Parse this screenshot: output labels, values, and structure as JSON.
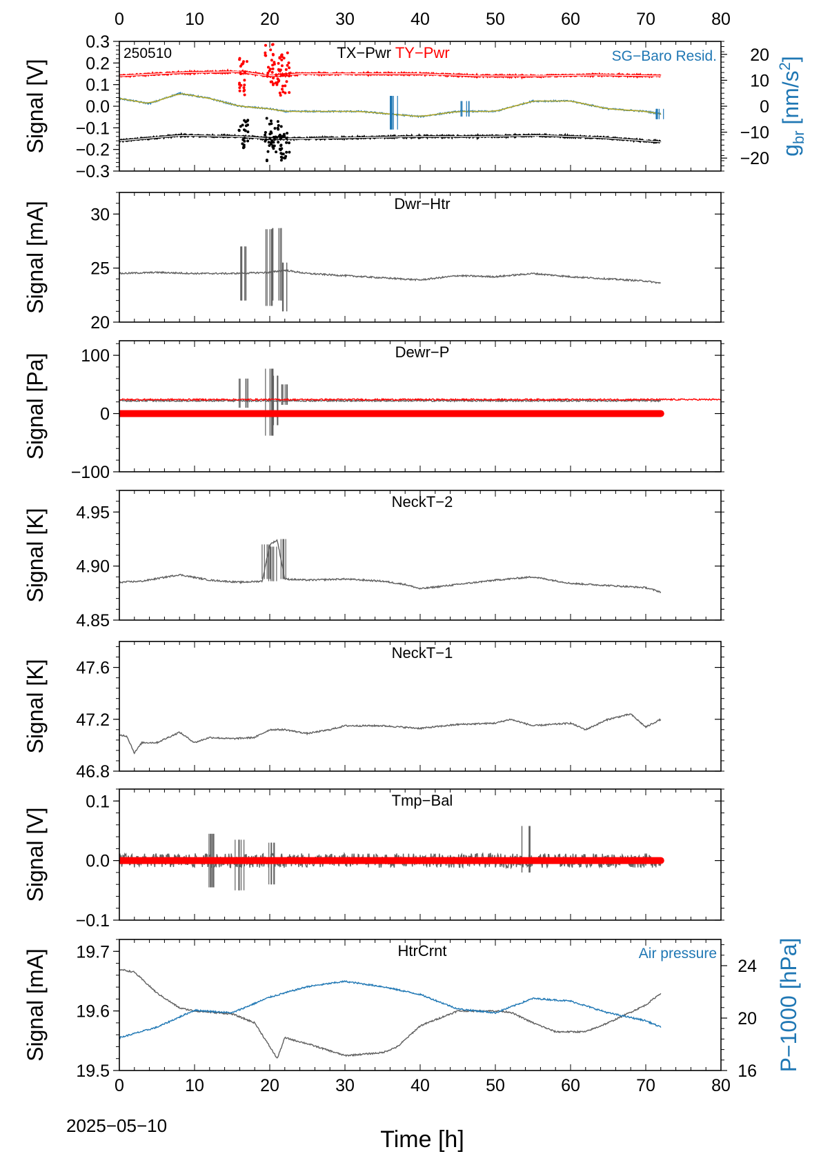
{
  "figure": {
    "date_label": "2025−05−10",
    "x_axis_label": "Time [h]",
    "x_range": [
      0,
      80
    ],
    "x_ticks": [
      0,
      10,
      20,
      30,
      40,
      50,
      60,
      70,
      80
    ]
  },
  "colors": {
    "black": "#000000",
    "red": "#ff0000",
    "blue": "#1f77b4",
    "gray": "#5f5f5f",
    "olive": "#b5a825"
  },
  "chart_data": [
    {
      "type": "line",
      "panel": "pwr",
      "corner_label": "250510",
      "title_parts": [
        "TX−Pwr",
        "TY−Pwr"
      ],
      "right_legend": "SG−Baro Resid.",
      "ylabel": "Signal [V]",
      "ylim": [
        -0.3,
        0.3
      ],
      "yticks": [
        -0.3,
        -0.2,
        -0.1,
        0.0,
        0.1,
        0.2,
        0.3
      ],
      "ytick_labels": [
        "−0.3",
        "−0.2",
        "−0.1",
        "0.0",
        "0.1",
        "0.2",
        "0.3"
      ],
      "y2label": "g_br [nm/s^2]",
      "y2lim": [
        -25,
        25
      ],
      "y2ticks": [
        -20,
        -10,
        0,
        10,
        20
      ],
      "y2tick_labels": [
        "−20",
        "−10",
        "0",
        "10",
        "20"
      ],
      "x_top_ticks": true,
      "series": [
        {
          "name": "TX−Pwr",
          "color": "#000000",
          "x": [
            0,
            8,
            16,
            20,
            24,
            32,
            40,
            48,
            56,
            64,
            72
          ],
          "y": [
            -0.16,
            -0.135,
            -0.14,
            -0.15,
            -0.15,
            -0.145,
            -0.14,
            -0.14,
            -0.135,
            -0.145,
            -0.165
          ],
          "spikes": [
            [
              16.5,
              -0.06,
              -0.2
            ],
            [
              20,
              -0.05,
              -0.26
            ],
            [
              21,
              -0.06,
              -0.25
            ],
            [
              22,
              -0.12,
              -0.25
            ]
          ]
        },
        {
          "name": "TY−Pwr",
          "color": "#ff0000",
          "x": [
            0,
            8,
            16,
            20,
            24,
            32,
            40,
            48,
            56,
            64,
            72
          ],
          "y": [
            0.14,
            0.155,
            0.16,
            0.14,
            0.15,
            0.15,
            0.15,
            0.14,
            0.14,
            0.145,
            0.14
          ],
          "spikes": [
            [
              16.5,
              0.24,
              0.05
            ],
            [
              20,
              0.29,
              0.08
            ],
            [
              21,
              0.27,
              0.1
            ],
            [
              22,
              0.25,
              0.05
            ]
          ]
        },
        {
          "name": "SG−Baro Resid.",
          "axis": "right",
          "color": "#1f77b4",
          "x": [
            0,
            4,
            8,
            12,
            16,
            20,
            22,
            27,
            32,
            36,
            40,
            45,
            50,
            55,
            60,
            65,
            70,
            72
          ],
          "y": [
            3,
            1,
            5,
            3,
            0,
            -1,
            -2,
            -2,
            -2,
            -3,
            -4,
            -2,
            -2,
            2,
            2,
            -1,
            -2,
            -3
          ],
          "spikes": [
            [
              36.5,
              4,
              -9
            ],
            [
              46,
              2,
              -4
            ],
            [
              72,
              -1,
              -5
            ]
          ]
        }
      ]
    },
    {
      "type": "line",
      "panel": "dwr-htr",
      "title": "Dwr−Htr",
      "ylabel": "Signal [mA]",
      "ylim": [
        20,
        32
      ],
      "yticks": [
        20,
        25,
        30
      ],
      "ytick_labels": [
        "20",
        "25",
        "30"
      ],
      "series": [
        {
          "name": "Dwr−Htr",
          "color": "#5f5f5f",
          "x": [
            0,
            5,
            10,
            15,
            20,
            22,
            25,
            30,
            35,
            40,
            45,
            50,
            55,
            60,
            65,
            70,
            72
          ],
          "y": [
            24.5,
            24.6,
            24.5,
            24.5,
            24.6,
            24.8,
            24.5,
            24.3,
            24.1,
            23.9,
            24.3,
            24.2,
            24.5,
            24.2,
            24.0,
            23.8,
            23.6
          ],
          "spikes": [
            [
              16.5,
              27,
              22
            ],
            [
              20,
              28.6,
              21.5
            ],
            [
              21,
              28.7,
              22
            ],
            [
              22,
              25.5,
              21
            ]
          ]
        }
      ]
    },
    {
      "type": "line",
      "panel": "dewr-p",
      "title": "Dewr−P",
      "ylabel": "Signal [Pa]",
      "ylim": [
        -100,
        125
      ],
      "yticks": [
        -100,
        0,
        100
      ],
      "ytick_labels": [
        "−100",
        "0",
        "100"
      ],
      "series": [
        {
          "name": "Dewr−P",
          "color": "#5f5f5f",
          "x": [
            0,
            72
          ],
          "y": [
            22,
            22
          ],
          "spikes": [
            [
              16.5,
              60,
              10
            ],
            [
              20,
              77,
              -38
            ],
            [
              21,
              65,
              -20
            ],
            [
              22,
              50,
              15
            ]
          ]
        },
        {
          "name": "Dewr−P reference",
          "color": "#ff0000",
          "x": [
            0,
            80
          ],
          "y": [
            24,
            24
          ]
        },
        {
          "name": "Dewr−P zero",
          "color": "#ff0000",
          "thick": true,
          "x": [
            0,
            72
          ],
          "y": [
            0,
            0
          ]
        }
      ]
    },
    {
      "type": "line",
      "panel": "neckt-2",
      "title": "NeckT−2",
      "ylabel": "Signal [K]",
      "ylim": [
        4.85,
        4.97
      ],
      "yticks": [
        4.85,
        4.9,
        4.95
      ],
      "ytick_labels": [
        "4.85",
        "4.90",
        "4.95"
      ],
      "series": [
        {
          "name": "NeckT−2",
          "color": "#5f5f5f",
          "x": [
            0,
            3,
            8,
            12,
            16,
            19,
            20,
            21,
            22,
            25,
            30,
            35,
            38,
            40,
            45,
            50,
            55,
            60,
            65,
            70,
            72
          ],
          "y": [
            4.885,
            4.886,
            4.892,
            4.887,
            4.885,
            4.886,
            4.92,
            4.924,
            4.888,
            4.887,
            4.888,
            4.886,
            4.883,
            4.879,
            4.883,
            4.887,
            4.89,
            4.884,
            4.882,
            4.88,
            4.876
          ],
          "spikes": [
            [
              19.5,
              4.92,
              4.888
            ],
            [
              20.5,
              4.918,
              4.886
            ],
            [
              21.5,
              4.925,
              4.888
            ]
          ]
        }
      ]
    },
    {
      "type": "line",
      "panel": "neckt-1",
      "title": "NeckT−1",
      "ylabel": "Signal [K]",
      "ylim": [
        46.8,
        47.8
      ],
      "yticks": [
        46.8,
        47.2,
        47.6
      ],
      "ytick_labels": [
        "46.8",
        "47.2",
        "47.6"
      ],
      "series": [
        {
          "name": "NeckT−1",
          "color": "#5f5f5f",
          "x": [
            0,
            1,
            2,
            3,
            5,
            8,
            10,
            12,
            15,
            18,
            20,
            22,
            25,
            28,
            30,
            35,
            40,
            45,
            50,
            52,
            55,
            60,
            62,
            65,
            68,
            70,
            72
          ],
          "y": [
            47.08,
            47.07,
            46.94,
            47.02,
            47.02,
            47.1,
            47.02,
            47.06,
            47.05,
            47.06,
            47.12,
            47.12,
            47.09,
            47.12,
            47.15,
            47.15,
            47.13,
            47.16,
            47.17,
            47.2,
            47.15,
            47.17,
            47.12,
            47.2,
            47.24,
            47.14,
            47.2
          ]
        }
      ]
    },
    {
      "type": "line",
      "panel": "tmp-bal",
      "title": "Tmp−Bal",
      "ylabel": "Signal [V]",
      "ylim": [
        -0.1,
        0.12
      ],
      "yticks": [
        -0.1,
        0.0,
        0.1
      ],
      "ytick_labels": [
        "−0.1",
        "0.0",
        "0.1"
      ],
      "series": [
        {
          "name": "Tmp−Bal",
          "color": "#5f5f5f",
          "noise": 0.012,
          "x": [
            0,
            72
          ],
          "y": [
            0,
            0
          ],
          "spikes": [
            [
              12.5,
              0.045,
              -0.045
            ],
            [
              16,
              0.035,
              -0.05
            ],
            [
              20,
              0.03,
              -0.04
            ],
            [
              54,
              0.058,
              -0.02
            ]
          ]
        },
        {
          "name": "Tmp−Bal zero",
          "color": "#ff0000",
          "thick": true,
          "x": [
            0,
            72
          ],
          "y": [
            0,
            0
          ]
        }
      ]
    },
    {
      "type": "line",
      "panel": "htrcrnt",
      "title": "HtrCrnt",
      "right_legend": "Air pressure",
      "ylabel": "Signal [mA]",
      "ylim": [
        19.5,
        19.72
      ],
      "yticks": [
        19.5,
        19.6,
        19.7
      ],
      "ytick_labels": [
        "19.5",
        "19.6",
        "19.7"
      ],
      "y2label": "P−1000 [hPa]",
      "y2lim": [
        16,
        26
      ],
      "y2ticks": [
        16,
        20,
        24
      ],
      "y2tick_labels": [
        "16",
        "20",
        "24"
      ],
      "x_bottom_ticks": true,
      "series": [
        {
          "name": "HtrCrnt",
          "color": "#5f5f5f",
          "x": [
            0,
            2,
            5,
            8,
            10,
            15,
            18,
            20,
            21,
            22,
            25,
            30,
            35,
            37,
            40,
            45,
            50,
            52,
            55,
            58,
            62,
            65,
            70,
            72
          ],
          "y": [
            19.67,
            19.665,
            19.63,
            19.605,
            19.6,
            19.595,
            19.58,
            19.54,
            19.52,
            19.555,
            19.545,
            19.525,
            19.53,
            19.54,
            19.575,
            19.6,
            19.6,
            19.598,
            19.58,
            19.565,
            19.565,
            19.58,
            19.61,
            19.63
          ]
        },
        {
          "name": "Air pressure",
          "axis": "right",
          "color": "#1f77b4",
          "x": [
            0,
            5,
            10,
            15,
            20,
            25,
            30,
            35,
            40,
            45,
            50,
            55,
            60,
            65,
            70,
            72
          ],
          "y": [
            18.5,
            19.3,
            20.6,
            20.4,
            21.6,
            22.4,
            22.8,
            22.4,
            21.8,
            20.7,
            20.4,
            21.5,
            21.3,
            20.4,
            19.8,
            19.3
          ]
        }
      ]
    }
  ]
}
